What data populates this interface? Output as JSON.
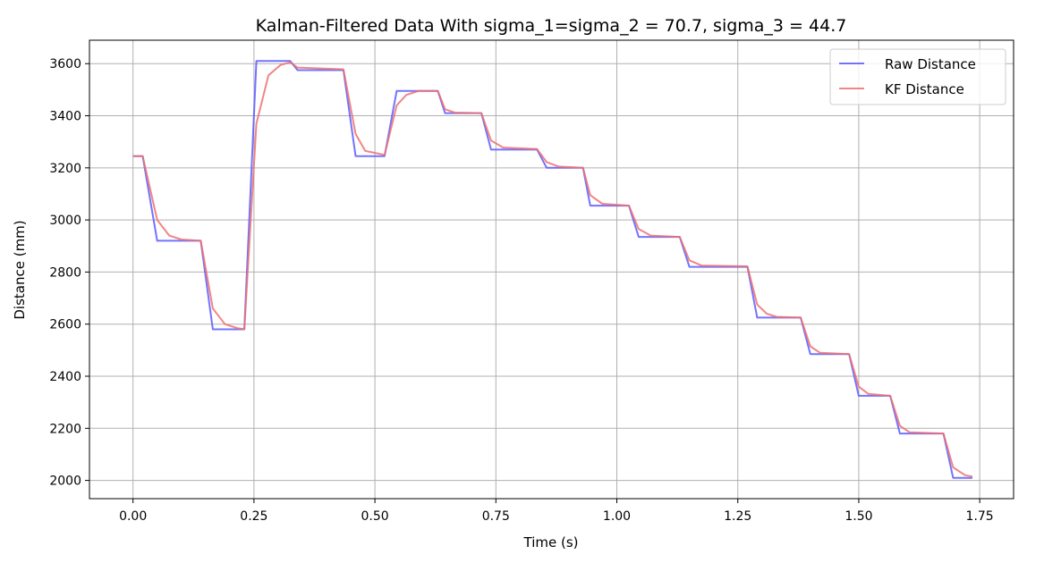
{
  "chart_data": {
    "type": "line",
    "title": "Kalman-Filtered Data With sigma_1=sigma_2 = 70.7, sigma_3 = 44.7",
    "xlabel": "Time (s)",
    "ylabel": "Distance (mm)",
    "xlim": [
      -0.09,
      1.82
    ],
    "ylim": [
      1930,
      3690
    ],
    "xticks": [
      0.0,
      0.25,
      0.5,
      0.75,
      1.0,
      1.25,
      1.5,
      1.75
    ],
    "xtick_labels": [
      "0.00",
      "0.25",
      "0.50",
      "0.75",
      "1.00",
      "1.25",
      "1.50",
      "1.75"
    ],
    "yticks": [
      2000,
      2200,
      2400,
      2600,
      2800,
      3000,
      3200,
      3400,
      3600
    ],
    "ytick_labels": [
      "2000",
      "2200",
      "2400",
      "2600",
      "2800",
      "3000",
      "3200",
      "3400",
      "3600"
    ],
    "grid": true,
    "legend_position": "top-right",
    "series": [
      {
        "name": "Raw Distance",
        "color": "#5a5aff",
        "x": [
          0.0,
          0.02,
          0.05,
          0.14,
          0.165,
          0.23,
          0.255,
          0.325,
          0.34,
          0.435,
          0.46,
          0.52,
          0.545,
          0.63,
          0.645,
          0.72,
          0.74,
          0.835,
          0.855,
          0.93,
          0.945,
          1.025,
          1.045,
          1.13,
          1.15,
          1.27,
          1.29,
          1.38,
          1.4,
          1.48,
          1.5,
          1.565,
          1.585,
          1.675,
          1.695,
          1.735
        ],
        "y": [
          3245,
          3245,
          2920,
          2920,
          2580,
          2580,
          3610,
          3610,
          3575,
          3575,
          3245,
          3245,
          3495,
          3495,
          3410,
          3410,
          3270,
          3270,
          3200,
          3200,
          3055,
          3055,
          2935,
          2935,
          2820,
          2820,
          2625,
          2625,
          2485,
          2485,
          2325,
          2325,
          2180,
          2180,
          2010,
          2010
        ]
      },
      {
        "name": "KF Distance",
        "color": "#ef7070",
        "x": [
          0.0,
          0.02,
          0.05,
          0.075,
          0.1,
          0.14,
          0.165,
          0.19,
          0.215,
          0.23,
          0.255,
          0.28,
          0.305,
          0.325,
          0.34,
          0.435,
          0.46,
          0.48,
          0.52,
          0.545,
          0.565,
          0.59,
          0.63,
          0.645,
          0.665,
          0.72,
          0.74,
          0.765,
          0.835,
          0.855,
          0.88,
          0.93,
          0.945,
          0.97,
          1.025,
          1.045,
          1.07,
          1.13,
          1.15,
          1.175,
          1.27,
          1.29,
          1.31,
          1.33,
          1.38,
          1.4,
          1.42,
          1.48,
          1.5,
          1.52,
          1.565,
          1.585,
          1.605,
          1.675,
          1.695,
          1.72,
          1.735
        ],
        "y": [
          3245,
          3245,
          3000,
          2940,
          2925,
          2920,
          2660,
          2600,
          2585,
          2580,
          3370,
          3555,
          3595,
          3605,
          3585,
          3578,
          3330,
          3265,
          3250,
          3440,
          3480,
          3495,
          3495,
          3425,
          3412,
          3410,
          3305,
          3278,
          3272,
          3222,
          3205,
          3200,
          3095,
          3062,
          3055,
          2965,
          2940,
          2935,
          2845,
          2825,
          2822,
          2675,
          2640,
          2628,
          2625,
          2515,
          2490,
          2485,
          2360,
          2332,
          2325,
          2210,
          2185,
          2180,
          2050,
          2020,
          2015
        ]
      }
    ]
  }
}
